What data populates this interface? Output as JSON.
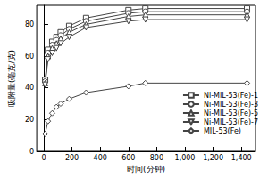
{
  "chart_data": {
    "type": "line",
    "xlabel": "时间(分钟)",
    "ylabel": "吸附量(毫克/克)",
    "x": [
      10,
      30,
      60,
      90,
      120,
      180,
      300,
      600,
      720,
      1440
    ],
    "series": [
      {
        "name": "Ni-MIL-53(Fe)-1",
        "color": "#444444",
        "marker": "square",
        "values": [
          45,
          64,
          69,
          72,
          75,
          79,
          84,
          89,
          90,
          90
        ]
      },
      {
        "name": "Ni-MIL-53(Fe)-3",
        "color": "#444444",
        "marker": "circle",
        "values": [
          44,
          62,
          67,
          70,
          73,
          77,
          82,
          87,
          88,
          88
        ]
      },
      {
        "name": "Ni-MIL-53(Fe)-5",
        "color": "#444444",
        "marker": "triangle",
        "values": [
          43,
          60,
          65,
          68,
          71,
          75,
          80,
          85,
          86,
          86
        ]
      },
      {
        "name": "Ni-MIL-53(Fe)-7",
        "color": "#444444",
        "marker": "triangle_down",
        "values": [
          42,
          58,
          62,
          65,
          68,
          72,
          78,
          82,
          83,
          83
        ]
      },
      {
        "name": "MIL-53(Fe)",
        "color": "#444444",
        "marker": "diamond",
        "values": [
          11,
          19,
          24,
          28,
          30,
          33,
          37,
          41,
          43,
          43
        ]
      }
    ],
    "xlim": [
      -50,
      1500
    ],
    "xticks": [
      0,
      200,
      400,
      600,
      800,
      1000,
      1200,
      1400
    ],
    "ylim": [
      0,
      92
    ],
    "yticks": [
      0,
      20,
      40,
      60,
      80
    ],
    "legend": "right",
    "grid": false
  }
}
